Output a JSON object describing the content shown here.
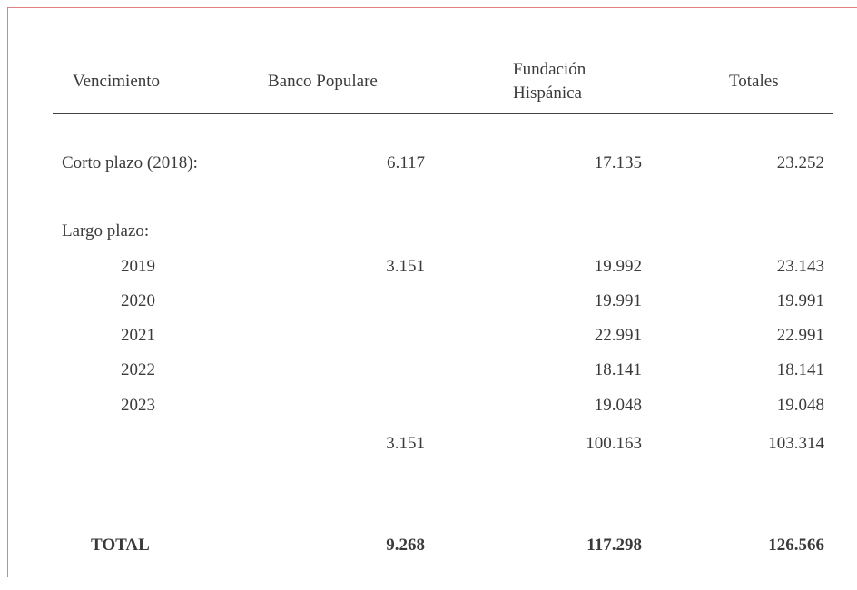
{
  "table": {
    "header": [
      [
        "Vencimiento"
      ],
      [
        "Banco Populare"
      ],
      [
        "Fundación",
        "Hispánica"
      ],
      [
        "Totales"
      ]
    ],
    "rows": [
      [
        "Corto plazo (2018):",
        "6.117",
        "17.135",
        "23.252"
      ],
      [
        "Largo plazo:",
        null,
        null,
        null
      ],
      [
        "2019",
        "3.151",
        "19.992",
        "23.143"
      ],
      [
        "2020",
        null,
        "19.991",
        "19.991"
      ],
      [
        "2021",
        null,
        "22.991",
        "22.991"
      ],
      [
        "2022",
        null,
        "18.141",
        "18.141"
      ],
      [
        "2023",
        null,
        "19.048",
        "19.048"
      ],
      [
        null,
        "3.151",
        "100.163",
        "103.314"
      ],
      [
        "TOTAL",
        "9.268",
        "117.298",
        "126.566"
      ]
    ]
  }
}
